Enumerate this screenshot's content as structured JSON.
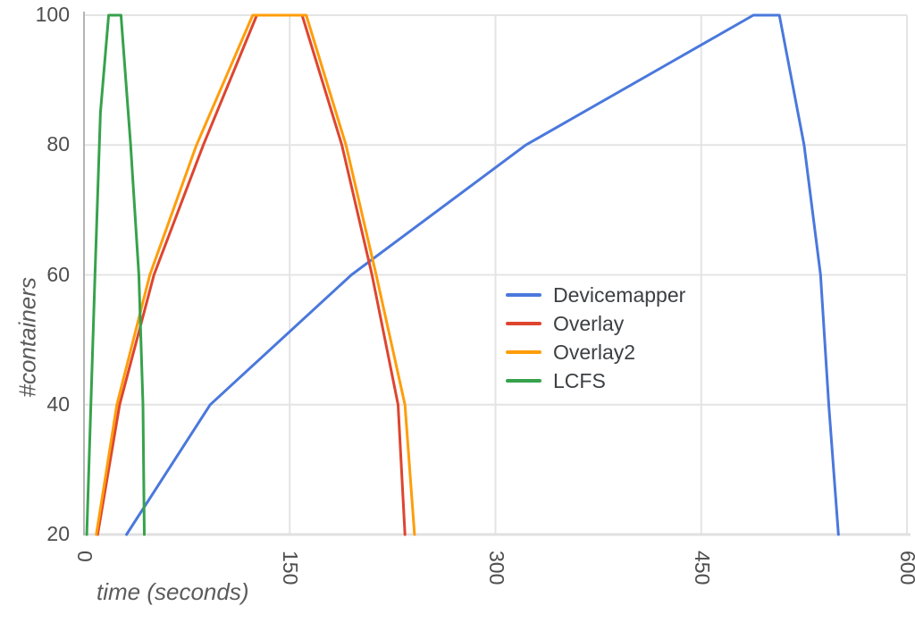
{
  "chart_data": {
    "type": "line",
    "title": "",
    "xlabel": "time (seconds)",
    "ylabel": "#containers",
    "xlim": [
      0,
      600
    ],
    "ylim": [
      20,
      100
    ],
    "x_ticks": [
      0,
      150,
      300,
      450,
      600
    ],
    "y_ticks": [
      20,
      40,
      60,
      80,
      100
    ],
    "grid": true,
    "legend_position": "center-right",
    "series": [
      {
        "name": "Devicemapper",
        "color": "#4a78dc",
        "points": [
          [
            31,
            20
          ],
          [
            92,
            40
          ],
          [
            195,
            60
          ],
          [
            322,
            80
          ],
          [
            488,
            100
          ],
          [
            507,
            100
          ],
          [
            525,
            80
          ],
          [
            537,
            60
          ],
          [
            543,
            40
          ],
          [
            550,
            20
          ]
        ]
      },
      {
        "name": "Overlay",
        "color": "#de452f",
        "points": [
          [
            10,
            20
          ],
          [
            26,
            40
          ],
          [
            51,
            60
          ],
          [
            87,
            80
          ],
          [
            126,
            100
          ],
          [
            159,
            100
          ],
          [
            188,
            80
          ],
          [
            210,
            60
          ],
          [
            229,
            40
          ],
          [
            234,
            20
          ]
        ]
      },
      {
        "name": "Overlay2",
        "color": "#ff9d0a",
        "points": [
          [
            9,
            20
          ],
          [
            24,
            40
          ],
          [
            48,
            60
          ],
          [
            82,
            80
          ],
          [
            123,
            100
          ],
          [
            162,
            100
          ],
          [
            191,
            80
          ],
          [
            213,
            60
          ],
          [
            234,
            40
          ],
          [
            241,
            20
          ]
        ]
      },
      {
        "name": "LCFS",
        "color": "#37a24c",
        "points": [
          [
            2,
            20
          ],
          [
            8,
            60
          ],
          [
            12,
            85
          ],
          [
            18,
            100
          ],
          [
            27,
            100
          ],
          [
            34,
            80
          ],
          [
            40,
            60
          ],
          [
            43,
            40
          ],
          [
            44,
            20
          ]
        ]
      }
    ]
  }
}
